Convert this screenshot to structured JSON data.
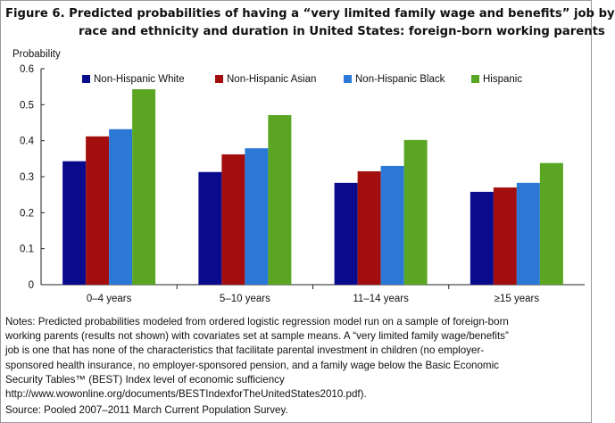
{
  "figure": {
    "title_line1": "Figure 6. Predicted probabilities of having a “very limited family wage and benefits” job by",
    "title_line2": "race and ethnicity and duration in United States: foreign-born working parents",
    "notes_lines": [
      "Notes: Predicted probabilities  modeled from ordered logistic regression model run on a sample of foreign-born",
      "working parents (results not shown) with covariates set at sample means. A “very limited family wage/benefits”",
      "job is one that has none of the characteristics that facilitate parental investment in children  (no employer-",
      "sponsored  health insurance, no employer-sponsored  pension, and a family wage below the Basic Economic",
      "Security Tables™ (BEST)  Index level of economic sufficiency",
      "http://www.wowonline.org/documents/BESTIndexforTheUnitedStates2010.pdf)."
    ],
    "source": "Source:  Pooled 2007–2011 March Current Population  Survey."
  },
  "chart_data": {
    "type": "bar",
    "ylabel": "Probability",
    "ylim": [
      0,
      0.6
    ],
    "yticks": [
      "0",
      "0.1",
      "0.2",
      "0.3",
      "0.4",
      "0.5",
      "0.6"
    ],
    "grid": false,
    "legend_position": "top",
    "categories": [
      "0–4 years",
      "5–10 years",
      "11–14 years",
      "≥15 years"
    ],
    "series": [
      {
        "name": "Non-Hispanic White",
        "color": "#0a0a8c",
        "values": [
          0.343,
          0.313,
          0.283,
          0.258
        ]
      },
      {
        "name": "Non-Hispanic Asian",
        "color": "#a30d0d",
        "values": [
          0.412,
          0.362,
          0.315,
          0.27
        ]
      },
      {
        "name": "Non-Hispanic Black",
        "color": "#2b78d6",
        "values": [
          0.432,
          0.379,
          0.33,
          0.283
        ]
      },
      {
        "name": "Hispanic",
        "color": "#5aa521",
        "values": [
          0.543,
          0.471,
          0.402,
          0.338
        ]
      }
    ]
  }
}
